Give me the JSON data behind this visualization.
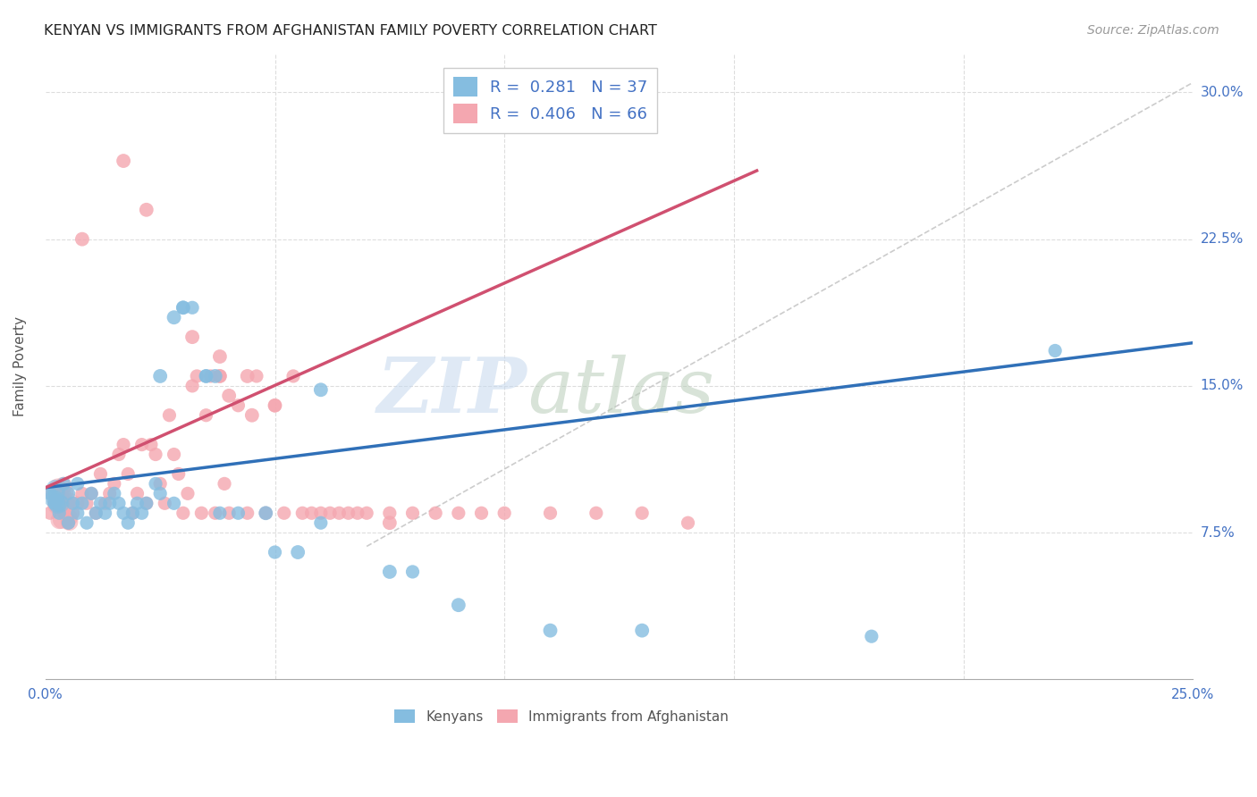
{
  "title": "KENYAN VS IMMIGRANTS FROM AFGHANISTAN FAMILY POVERTY CORRELATION CHART",
  "source": "Source: ZipAtlas.com",
  "ylabel_label": "Family Poverty",
  "xlim": [
    0.0,
    0.25
  ],
  "ylim": [
    0.0,
    0.32
  ],
  "kenyan_R": "0.281",
  "kenyan_N": "37",
  "afghan_R": "0.406",
  "afghan_N": "66",
  "kenyan_color": "#85bde0",
  "afghan_color": "#f4a7b0",
  "kenyan_line_color": "#3070b8",
  "afghan_line_color": "#d05070",
  "diagonal_color": "#cccccc",
  "kenyan_line_x": [
    0.0,
    0.25
  ],
  "kenyan_line_y": [
    0.098,
    0.172
  ],
  "afghan_line_x": [
    0.0,
    0.155
  ],
  "afghan_line_y": [
    0.098,
    0.26
  ],
  "diag_line_x": [
    0.07,
    0.25
  ],
  "diag_line_y": [
    0.068,
    0.305
  ],
  "kenyan_scatter_x": [
    0.001,
    0.002,
    0.003,
    0.004,
    0.005,
    0.005,
    0.006,
    0.007,
    0.007,
    0.008,
    0.009,
    0.01,
    0.011,
    0.012,
    0.013,
    0.014,
    0.015,
    0.016,
    0.017,
    0.018,
    0.019,
    0.02,
    0.021,
    0.022,
    0.024,
    0.025,
    0.028,
    0.03,
    0.032,
    0.035,
    0.038,
    0.042,
    0.05,
    0.06,
    0.08,
    0.18,
    0.22
  ],
  "kenyan_scatter_y": [
    0.095,
    0.09,
    0.085,
    0.1,
    0.095,
    0.08,
    0.09,
    0.1,
    0.085,
    0.09,
    0.08,
    0.095,
    0.085,
    0.09,
    0.085,
    0.09,
    0.095,
    0.09,
    0.085,
    0.08,
    0.085,
    0.09,
    0.085,
    0.09,
    0.1,
    0.095,
    0.09,
    0.19,
    0.19,
    0.155,
    0.085,
    0.085,
    0.065,
    0.08,
    0.055,
    0.022,
    0.168
  ],
  "afghan_scatter_x": [
    0.001,
    0.002,
    0.003,
    0.004,
    0.005,
    0.005,
    0.006,
    0.007,
    0.008,
    0.009,
    0.01,
    0.011,
    0.012,
    0.013,
    0.014,
    0.015,
    0.016,
    0.017,
    0.018,
    0.019,
    0.02,
    0.021,
    0.022,
    0.023,
    0.024,
    0.025,
    0.026,
    0.027,
    0.028,
    0.029,
    0.03,
    0.031,
    0.032,
    0.033,
    0.034,
    0.035,
    0.036,
    0.037,
    0.038,
    0.039,
    0.04,
    0.042,
    0.044,
    0.046,
    0.048,
    0.05,
    0.052,
    0.054,
    0.056,
    0.058,
    0.06,
    0.062,
    0.064,
    0.066,
    0.068,
    0.07,
    0.075,
    0.08,
    0.085,
    0.09,
    0.095,
    0.1,
    0.11,
    0.12,
    0.13,
    0.14
  ],
  "afghan_scatter_y": [
    0.085,
    0.09,
    0.095,
    0.085,
    0.08,
    0.09,
    0.085,
    0.09,
    0.095,
    0.09,
    0.095,
    0.085,
    0.105,
    0.09,
    0.095,
    0.1,
    0.115,
    0.12,
    0.105,
    0.085,
    0.095,
    0.12,
    0.09,
    0.12,
    0.115,
    0.1,
    0.09,
    0.135,
    0.115,
    0.105,
    0.085,
    0.095,
    0.15,
    0.155,
    0.085,
    0.135,
    0.155,
    0.085,
    0.155,
    0.1,
    0.085,
    0.14,
    0.085,
    0.155,
    0.085,
    0.14,
    0.085,
    0.155,
    0.085,
    0.085,
    0.085,
    0.085,
    0.085,
    0.085,
    0.085,
    0.085,
    0.085,
    0.085,
    0.085,
    0.085,
    0.085,
    0.085,
    0.085,
    0.085,
    0.085,
    0.08
  ],
  "background_color": "#ffffff",
  "grid_color": "#dddddd"
}
